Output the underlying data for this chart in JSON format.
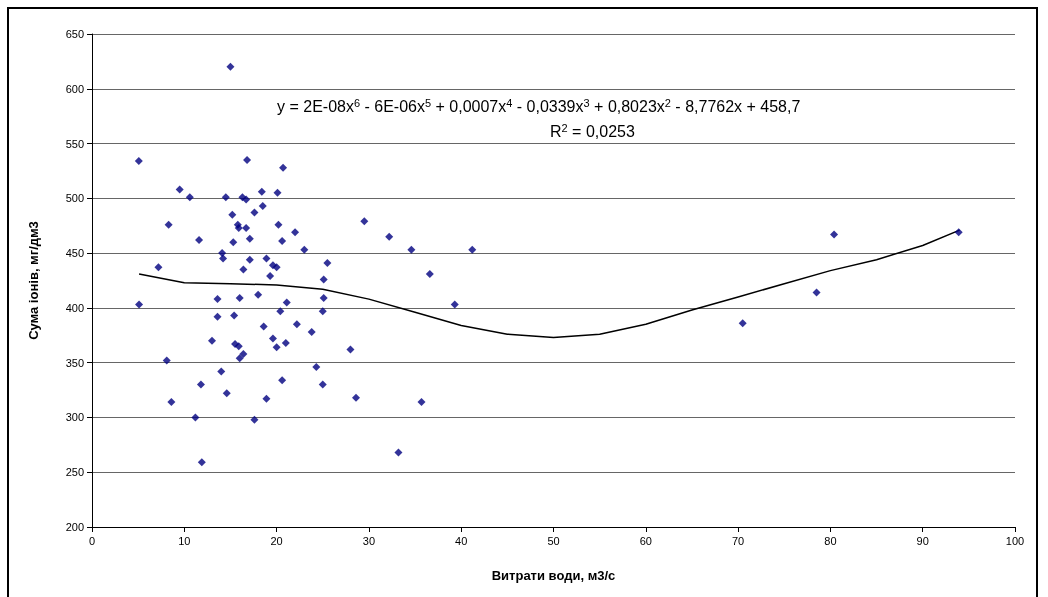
{
  "chart_data": {
    "type": "scatter",
    "xlabel": "Витрати води, м3/с",
    "ylabel": "Сума іонів, мг/дм3",
    "xlim": [
      0,
      100
    ],
    "xticks": [
      0,
      10,
      20,
      30,
      40,
      50,
      60,
      70,
      80,
      90,
      100
    ],
    "ylim": [
      200,
      650
    ],
    "yticks": [
      200,
      250,
      300,
      350,
      400,
      450,
      500,
      550,
      600,
      650
    ],
    "grid": "y",
    "marker": "diamond",
    "annotations": [
      "y = 2E-08x$^{6}$ - 6E-06x$^{5}$ + 0,0007x$^{4}$ - 0,0339x$^{3}$ + 0,8023x$^{2}$ - 8,7762x + 458,7",
      "R$^{2}$ = 0,0253"
    ],
    "series": [
      {
        "type": "scatter",
        "color": "#000080",
        "x": [
          5.07,
          5.1,
          7.2,
          8.1,
          8.3,
          8.6,
          9.5,
          10.6,
          11.6,
          11.8,
          11.2,
          11.9,
          13.0,
          13.6,
          13.6,
          14.0,
          14.1,
          14.2,
          14.5,
          14.6,
          15.0,
          15.2,
          15.3,
          15.4,
          15.5,
          15.8,
          15.9,
          15.9,
          16.0,
          16.0,
          16.3,
          16.4,
          16.4,
          16.7,
          16.7,
          16.8,
          17.1,
          17.1,
          17.6,
          17.6,
          18.0,
          18.4,
          18.5,
          18.6,
          18.9,
          18.9,
          19.3,
          19.6,
          19.6,
          20.0,
          20.0,
          20.1,
          20.2,
          20.4,
          20.6,
          20.6,
          20.7,
          21.0,
          21.1,
          22.0,
          22.2,
          23.0,
          23.8,
          24.3,
          25.1,
          25.1,
          25.0,
          25.0,
          25.5,
          28.0,
          28.6,
          29.5,
          32.2,
          33.2,
          34.6,
          35.7,
          36.6,
          39.3,
          41.2,
          70.5,
          78.5,
          80.4,
          93.9
        ],
        "values": [
          534,
          403,
          437,
          352,
          476,
          314,
          508,
          501,
          462,
          330,
          300,
          259,
          370,
          408,
          392,
          342,
          450,
          445,
          501,
          322,
          620,
          485,
          460,
          393,
          367,
          476,
          473,
          365,
          409,
          354,
          501,
          435,
          358,
          499,
          473,
          535,
          463,
          444,
          487,
          298,
          412,
          506,
          493,
          383,
          445,
          317,
          429,
          439,
          372,
          437,
          364,
          505,
          476,
          397,
          461,
          334,
          528,
          368,
          405,
          469,
          385,
          453,
          378,
          346,
          409,
          426,
          397,
          330,
          441,
          362,
          318,
          479,
          465,
          268,
          453,
          314,
          431,
          403,
          453,
          386,
          414,
          467,
          469
        ]
      },
      {
        "type": "line",
        "color": "#000000",
        "marker": "none",
        "x": [
          5.1,
          10,
          15,
          20,
          25,
          30,
          35,
          40,
          45,
          50,
          55,
          60,
          65,
          70,
          75,
          80,
          85,
          90,
          94
        ],
        "values": [
          431,
          423,
          422,
          421,
          417,
          408,
          396,
          384,
          376,
          373,
          376,
          385,
          398,
          410,
          422,
          434,
          444,
          457,
          471
        ]
      }
    ]
  }
}
